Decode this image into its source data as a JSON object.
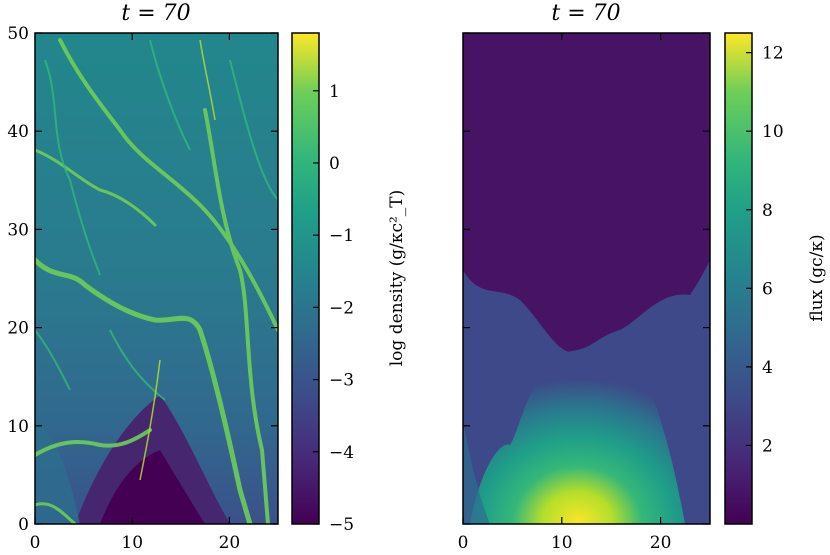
{
  "chart_data": [
    {
      "type": "heatmap",
      "title": "t = 70",
      "xlabel": "",
      "ylabel": "",
      "x_ticks": [
        "0",
        "10",
        "20"
      ],
      "y_ticks": [
        "0",
        "10",
        "20",
        "30",
        "40",
        "50"
      ],
      "xlim": [
        0,
        25
      ],
      "ylim": [
        0,
        50
      ],
      "colormap": "viridis",
      "colorbar": {
        "label": "log density (g/κc²_T)",
        "ticks": [
          "−5",
          "−4",
          "−3",
          "−2",
          "−1",
          "0",
          "1"
        ],
        "range": [
          -5,
          1.8
        ]
      }
    },
    {
      "type": "heatmap",
      "title": "t = 70",
      "xlabel": "",
      "ylabel": "",
      "x_ticks": [
        "0",
        "10",
        "20"
      ],
      "xlim": [
        0,
        25
      ],
      "ylim": [
        0,
        50
      ],
      "colormap": "viridis",
      "colorbar": {
        "label": "flux (gc/κ)",
        "ticks": [
          "2",
          "4",
          "6",
          "8",
          "10",
          "12"
        ],
        "range": [
          0,
          12.5
        ]
      }
    }
  ]
}
